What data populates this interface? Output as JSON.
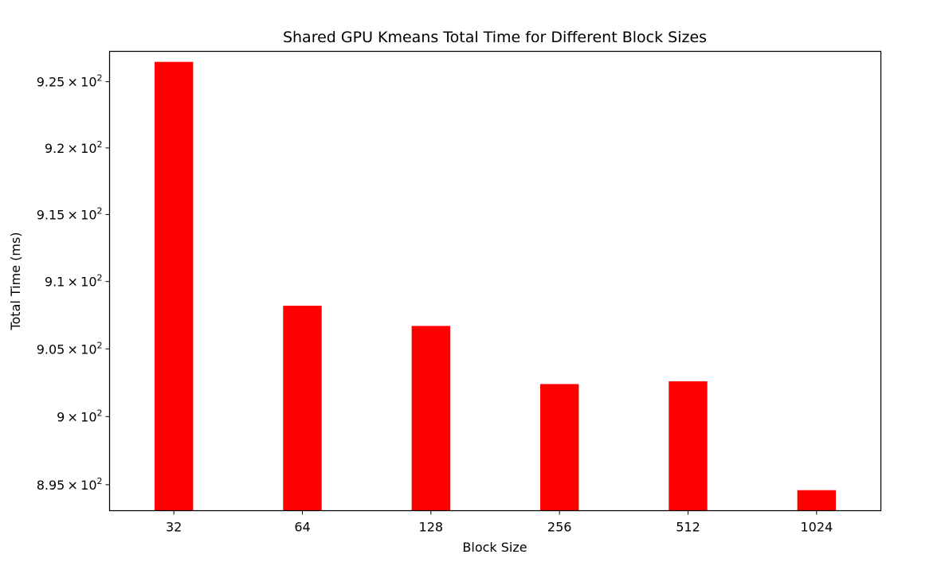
{
  "chart_data": {
    "type": "bar",
    "title": "Shared GPU Kmeans Total Time for Different Block Sizes",
    "xlabel": "Block Size",
    "ylabel": "Total Time (ms)",
    "categories": [
      "32",
      "64",
      "128",
      "256",
      "512",
      "1024"
    ],
    "values": [
      926.5,
      908.2,
      906.7,
      902.4,
      902.6,
      894.6
    ],
    "ylim": [
      893.1,
      927.3
    ],
    "yscale": "log",
    "yticks": [
      {
        "value": 895,
        "mantissa": "8.95",
        "base": "10",
        "exponent": "2"
      },
      {
        "value": 900,
        "mantissa": "9",
        "base": "10",
        "exponent": "2"
      },
      {
        "value": 905,
        "mantissa": "9.05",
        "base": "10",
        "exponent": "2"
      },
      {
        "value": 910,
        "mantissa": "9.1",
        "base": "10",
        "exponent": "2"
      },
      {
        "value": 915,
        "mantissa": "9.15",
        "base": "10",
        "exponent": "2"
      },
      {
        "value": 920,
        "mantissa": "9.2",
        "base": "10",
        "exponent": "2"
      },
      {
        "value": 925,
        "mantissa": "9.25",
        "base": "10",
        "exponent": "2"
      }
    ],
    "bar_color": "#ff0000",
    "grid": false,
    "legend": "none"
  }
}
